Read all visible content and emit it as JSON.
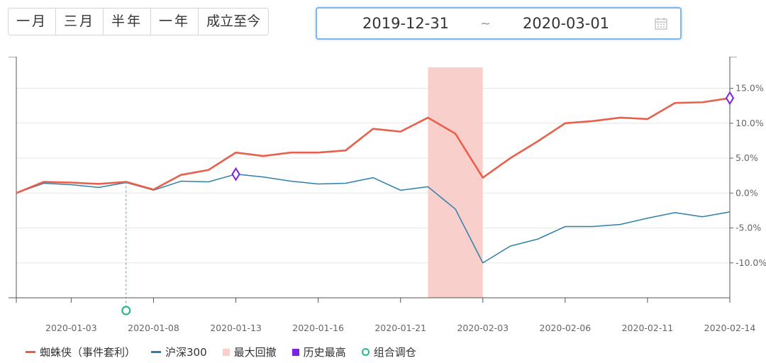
{
  "period_buttons": [
    "一月",
    "三月",
    "半年",
    "一年",
    "成立至今"
  ],
  "date_range": {
    "start": "2019-12-31",
    "separator": "~",
    "end": "2020-03-01"
  },
  "icons": {
    "calendar": "calendar-icon",
    "history_high": "diamond-icon",
    "rebalance": "ring-icon"
  },
  "colors": {
    "fund": "#e8604c",
    "index": "#2e7fa8",
    "drawdown": "#f9cfcb",
    "history_high": "#7e22e5",
    "rebalance": "#2fb58f"
  },
  "chart_data": {
    "type": "line",
    "x": [
      "2019-12-31",
      "2020-01-02",
      "2020-01-03",
      "2020-01-06",
      "2020-01-07",
      "2020-01-08",
      "2020-01-09",
      "2020-01-10",
      "2020-01-13",
      "2020-01-14",
      "2020-01-15",
      "2020-01-16",
      "2020-01-17",
      "2020-01-20",
      "2020-01-21",
      "2020-01-22",
      "2020-01-23",
      "2020-02-03",
      "2020-02-04",
      "2020-02-05",
      "2020-02-06",
      "2020-02-07",
      "2020-02-10",
      "2020-02-11",
      "2020-02-12",
      "2020-02-13",
      "2020-02-14"
    ],
    "xticks": [
      "2020-01-03",
      "2020-01-08",
      "2020-01-13",
      "2020-01-16",
      "2020-01-21",
      "2020-02-03",
      "2020-02-06",
      "2020-02-11",
      "2020-02-14"
    ],
    "yticks": [
      "15.0%",
      "10.0%",
      "5.0%",
      "0.0%",
      "-5.0%",
      "-10.0%"
    ],
    "ylim": [
      -15,
      18
    ],
    "series": [
      {
        "name": "蜘蛛侠（事件套利）",
        "values": [
          0.0,
          1.6,
          1.5,
          1.3,
          1.6,
          0.5,
          2.6,
          3.3,
          5.8,
          5.3,
          5.8,
          5.8,
          6.1,
          9.2,
          8.8,
          10.8,
          8.5,
          2.2,
          5.0,
          7.4,
          10.0,
          10.3,
          10.8,
          10.6,
          12.9,
          13.0,
          13.6
        ]
      },
      {
        "name": "沪深300",
        "values": [
          0.0,
          1.4,
          1.2,
          0.8,
          1.5,
          0.4,
          1.7,
          1.6,
          2.7,
          2.3,
          1.7,
          1.3,
          1.4,
          2.2,
          0.4,
          0.9,
          -2.3,
          -10.0,
          -7.6,
          -6.6,
          -4.8,
          -4.8,
          -4.5,
          -3.6,
          -2.8,
          -3.4,
          -2.7
        ]
      }
    ],
    "drawdown": {
      "start": "2020-01-22",
      "end": "2020-02-03"
    },
    "history_high_points": [
      {
        "series": "沪深300",
        "x": "2020-01-13"
      },
      {
        "series": "蜘蛛侠（事件套利）",
        "x": "2020-02-14"
      }
    ],
    "rebalance_points": [
      "2020-01-07"
    ]
  },
  "legend": [
    {
      "label": "蜘蛛侠（事件套利）",
      "kind": "line",
      "color": "#e8604c"
    },
    {
      "label": "沪深300",
      "kind": "line",
      "color": "#2e7fa8"
    },
    {
      "label": "最大回撤",
      "kind": "box",
      "color": "#f9cfcb"
    },
    {
      "label": "历史最高",
      "kind": "box",
      "color": "#7e22e5"
    },
    {
      "label": "组合调仓",
      "kind": "ring",
      "color": "#2fb58f"
    }
  ]
}
